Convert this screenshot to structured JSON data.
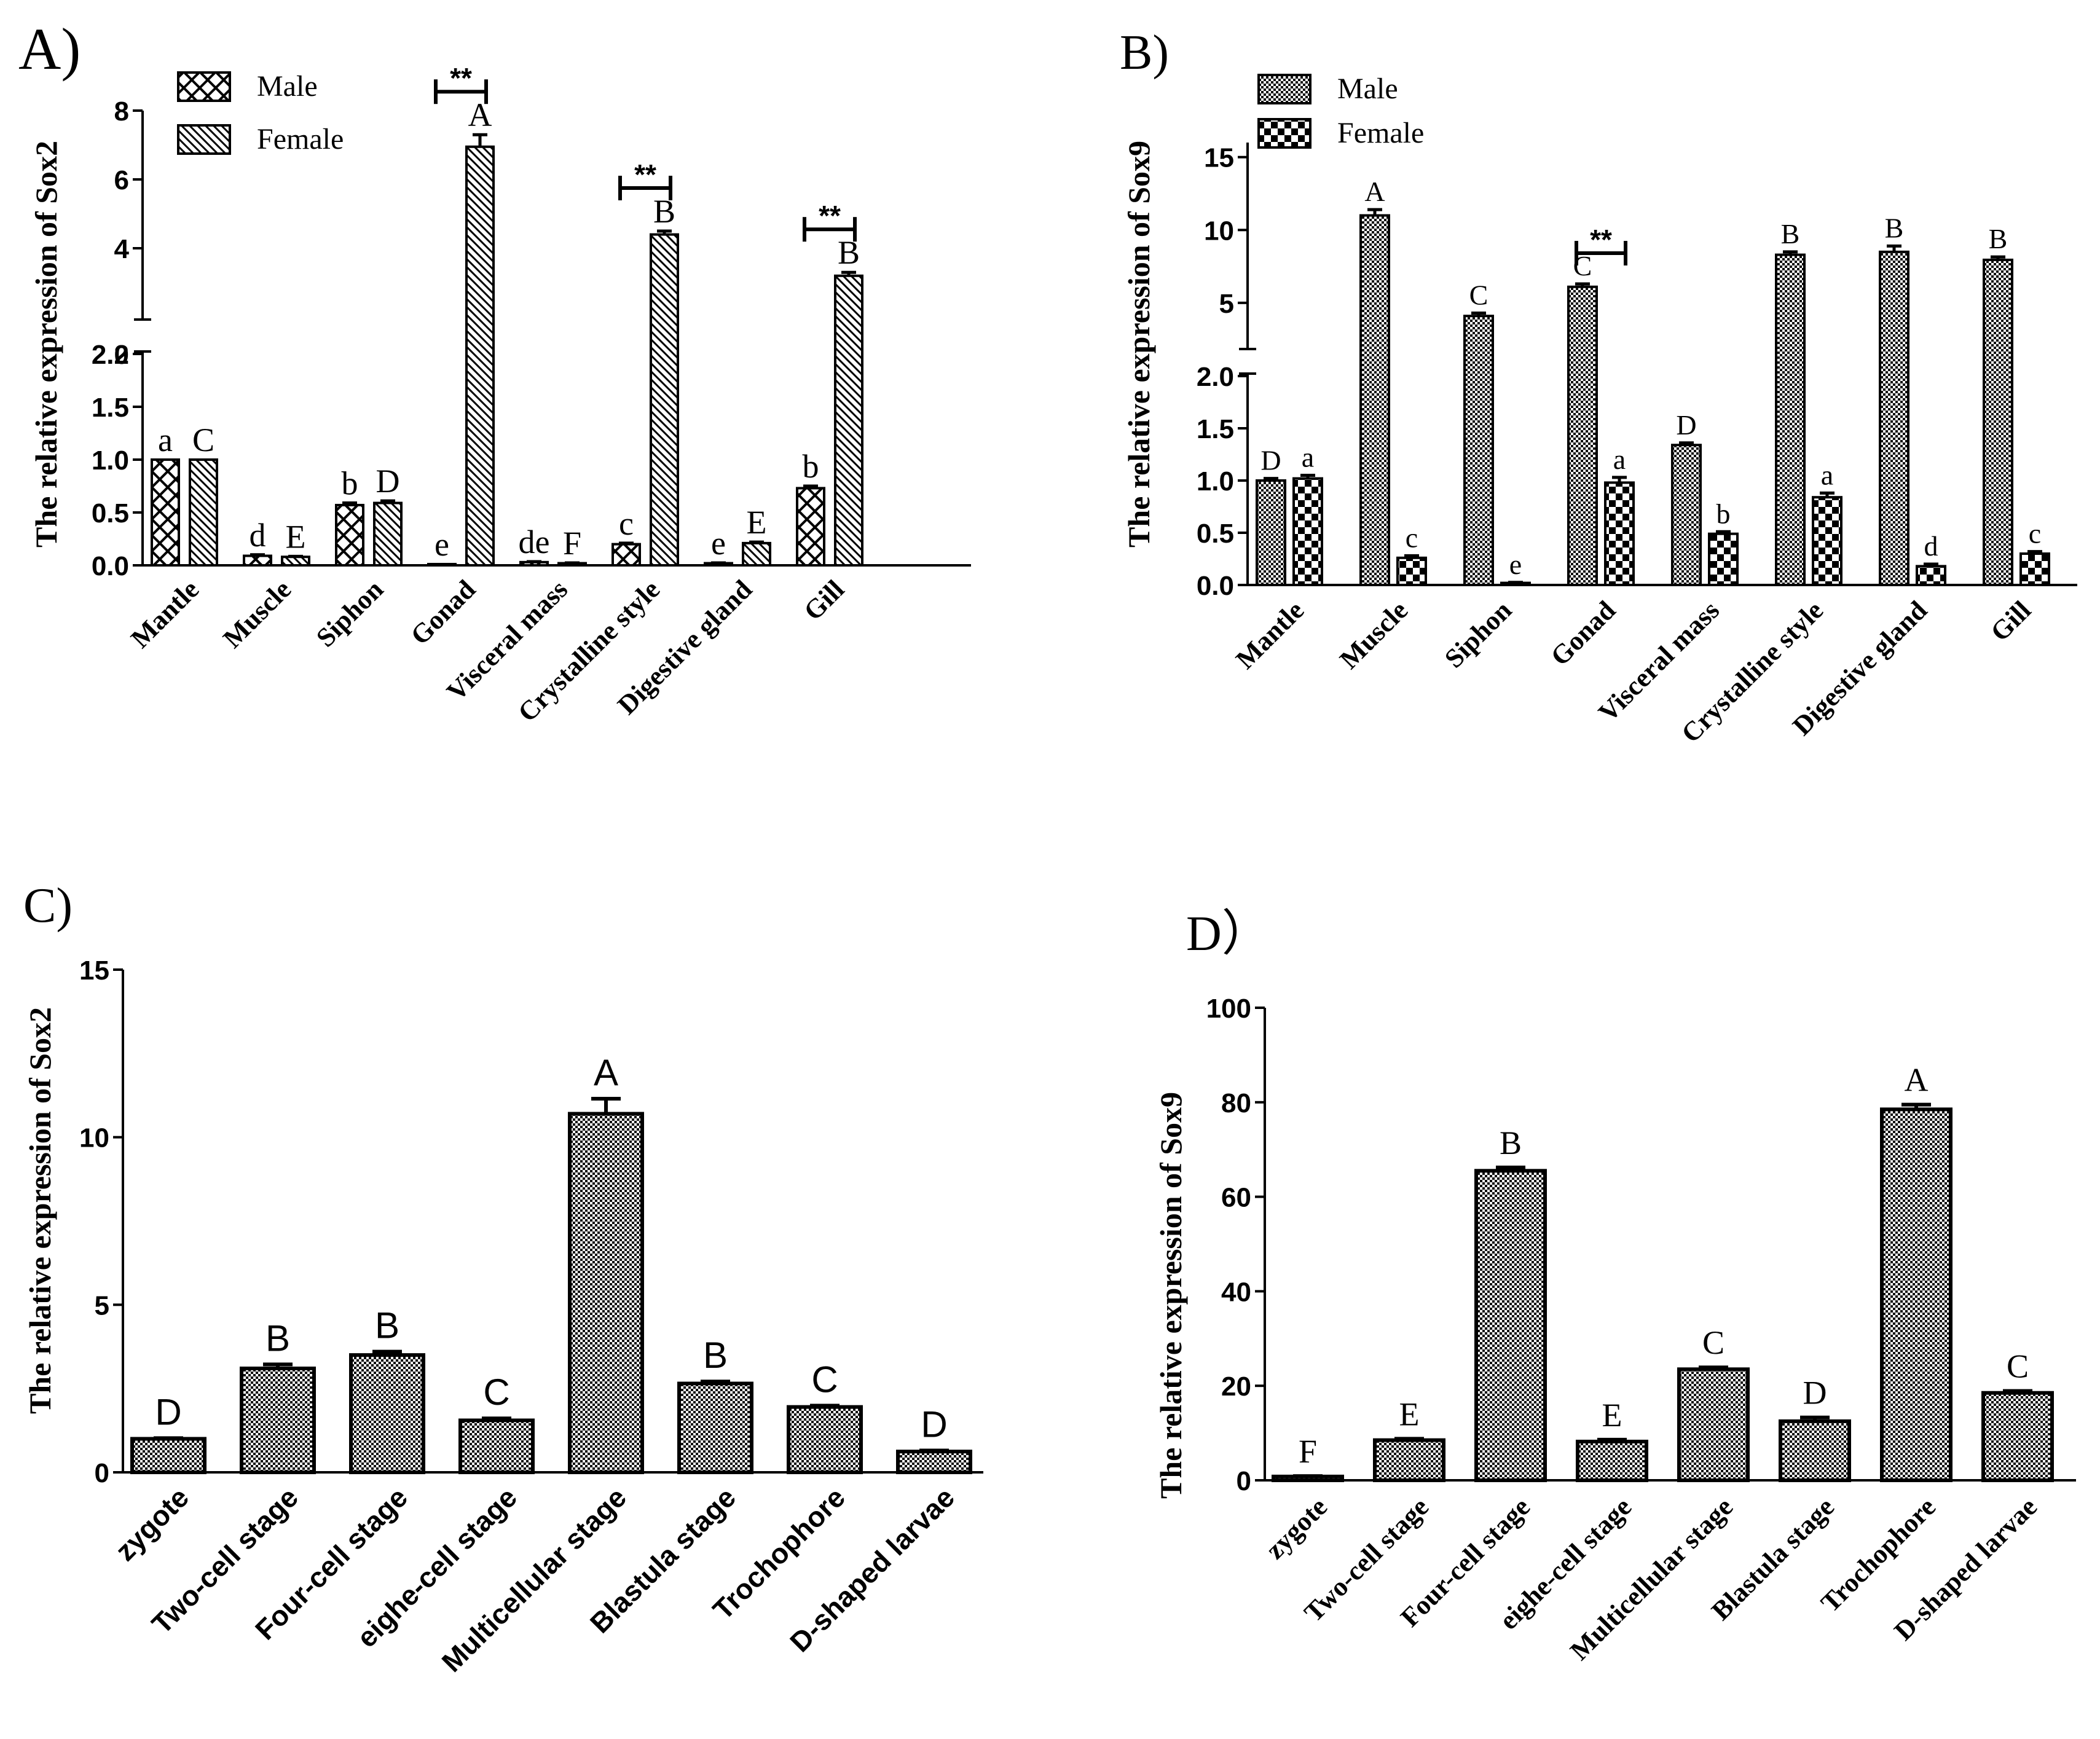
{
  "chart_data": [
    {
      "type": "bar",
      "panel_label": "A)",
      "ylabel": "The relative expression of Sox2",
      "axis_break": {
        "lower": [
          0,
          2.0
        ],
        "upper": [
          2,
          8
        ]
      },
      "lower_ticks": [
        "0.0",
        "0.5",
        "1.0",
        "1.5",
        "2.0"
      ],
      "upper_ticks": [
        "2",
        "4",
        "6",
        "8"
      ],
      "categories": [
        "Mantle",
        "Muscle",
        "Siphon",
        "Gonad",
        "Visceral mass",
        "Crystalline style",
        "Digestive gland",
        "Gill"
      ],
      "series": [
        {
          "name": "Male",
          "pattern": "crosshatch",
          "values": [
            1.0,
            0.09,
            0.57,
            0.01,
            0.03,
            0.2,
            0.02,
            0.73
          ],
          "errors": [
            0.0,
            0.01,
            0.02,
            0.0,
            0.005,
            0.01,
            0.003,
            0.02
          ],
          "letters": [
            "a",
            "d",
            "b",
            "e",
            "de",
            "c",
            "e",
            "b"
          ]
        },
        {
          "name": "Female",
          "pattern": "diagonal",
          "values": [
            1.0,
            0.08,
            0.59,
            6.95,
            0.02,
            4.4,
            0.21,
            3.2
          ],
          "errors": [
            0.0,
            0.005,
            0.02,
            0.35,
            0.003,
            0.1,
            0.01,
            0.1
          ],
          "letters": [
            "C",
            "E",
            "D",
            "A",
            "F",
            "B",
            "E",
            "B"
          ]
        }
      ],
      "significance": [
        {
          "category": "Gonad",
          "label": "**"
        },
        {
          "category": "Crystalline style",
          "label": "**"
        },
        {
          "category": "Gill",
          "label": "**"
        }
      ]
    },
    {
      "type": "bar",
      "panel_label": "B)",
      "ylabel": "The relative expression of Sox9",
      "axis_break": {
        "lower": [
          0,
          2.0
        ],
        "upper": [
          2,
          16
        ]
      },
      "lower_ticks": [
        "0.0",
        "0.5",
        "1.0",
        "1.5",
        "2.0"
      ],
      "upper_ticks": [
        "5",
        "10",
        "15"
      ],
      "categories": [
        "Mantle",
        "Muscle",
        "Siphon",
        "Gonad",
        "Visceral mass",
        "Crystalline style",
        "Digestive gland",
        "Gill"
      ],
      "series": [
        {
          "name": "Male",
          "pattern": "dense-check",
          "values": [
            1.0,
            11.0,
            4.1,
            6.1,
            1.34,
            8.3,
            8.5,
            7.95
          ],
          "errors": [
            0.02,
            0.4,
            0.2,
            0.2,
            0.02,
            0.2,
            0.4,
            0.2
          ],
          "letters": [
            "D",
            "A",
            "C",
            "C",
            "D",
            "B",
            "B",
            "B"
          ]
        },
        {
          "name": "Female",
          "pattern": "checker",
          "values": [
            1.02,
            0.26,
            0.02,
            0.98,
            0.49,
            0.84,
            0.18,
            0.3
          ],
          "errors": [
            0.03,
            0.02,
            0.005,
            0.05,
            0.02,
            0.04,
            0.02,
            0.02
          ],
          "letters": [
            "a",
            "c",
            "e",
            "a",
            "b",
            "a",
            "d",
            "c"
          ]
        }
      ],
      "significance": [
        {
          "category": "Gonad",
          "label": "**"
        }
      ]
    },
    {
      "type": "bar",
      "panel_label": "C)",
      "ylabel": "The relative expression of Sox2",
      "ylim": [
        0,
        15
      ],
      "ticks": [
        "0",
        "5",
        "10",
        "15"
      ],
      "categories": [
        "zygote",
        "Two-cell stage",
        "Four-cell stage",
        "eighe-cell stage",
        "Multicellular stage",
        "Blastula stage",
        "Trochophore",
        "D-shaped larvae"
      ],
      "values": [
        1.0,
        3.1,
        3.5,
        1.55,
        10.7,
        2.65,
        1.95,
        0.62
      ],
      "errors": [
        0.02,
        0.12,
        0.1,
        0.06,
        0.45,
        0.06,
        0.04,
        0.03
      ],
      "letters": [
        "D",
        "B",
        "B",
        "C",
        "A",
        "B",
        "C",
        "D"
      ]
    },
    {
      "type": "bar",
      "panel_label": "D）",
      "ylabel": "The relative expression of Sox9",
      "ylim": [
        0,
        100
      ],
      "ticks": [
        "0",
        "20",
        "40",
        "60",
        "80",
        "100"
      ],
      "categories": [
        "zygote",
        "Two-cell stage",
        "Four-cell stage",
        "eighe-cell stage",
        "Multicellular stage",
        "Blastula stage",
        "Trochophore",
        "D-shaped larvae"
      ],
      "values": [
        0.8,
        8.5,
        65.5,
        8.2,
        23.5,
        12.5,
        78.5,
        18.5
      ],
      "errors": [
        0.1,
        0.3,
        0.7,
        0.4,
        0.4,
        0.8,
        1.0,
        0.4
      ],
      "letters": [
        "F",
        "E",
        "B",
        "E",
        "C",
        "D",
        "A",
        "C"
      ]
    }
  ]
}
